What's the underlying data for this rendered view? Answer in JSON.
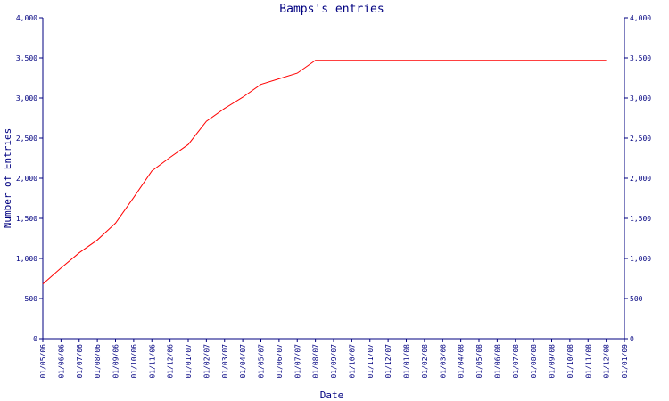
{
  "chart_data": {
    "type": "line",
    "title": "Bamps's entries",
    "xlabel": "Date",
    "ylabel": "Number of Entries",
    "ylim": [
      0,
      4000
    ],
    "y_ticks": [
      "0",
      "500",
      "1,000",
      "1,500",
      "2,000",
      "2,500",
      "3,000",
      "3,500",
      "4,000"
    ],
    "x_ticks": [
      "01/05/06",
      "01/06/06",
      "01/07/06",
      "01/08/06",
      "01/09/06",
      "01/10/06",
      "01/11/06",
      "01/12/06",
      "01/01/07",
      "01/02/07",
      "01/03/07",
      "01/04/07",
      "01/05/07",
      "01/06/07",
      "01/07/07",
      "01/08/07",
      "01/09/07",
      "01/10/07",
      "01/11/07",
      "01/12/07",
      "01/01/08",
      "01/02/08",
      "01/03/08",
      "01/04/08",
      "01/05/08",
      "01/06/08",
      "01/07/08",
      "01/08/08",
      "01/09/08",
      "01/10/08",
      "01/11/08",
      "01/12/08",
      "01/01/09"
    ],
    "grid": false,
    "colors": {
      "axis": "#000080",
      "line": "#ff0000"
    },
    "series": [
      {
        "x": [
          "01/05/06",
          "01/06/06",
          "01/07/06",
          "01/08/06",
          "01/09/06",
          "01/10/06",
          "01/11/06",
          "01/12/06",
          "01/01/07",
          "01/02/07",
          "01/03/07",
          "01/04/07",
          "01/05/07",
          "01/06/07",
          "01/07/07",
          "01/08/07",
          "01/09/07",
          "01/10/07",
          "01/11/07",
          "01/12/07",
          "01/01/08",
          "01/02/08",
          "01/03/08",
          "01/04/08",
          "01/05/08",
          "01/06/08",
          "01/07/08",
          "01/08/08",
          "01/09/08",
          "01/10/08",
          "01/11/08",
          "01/12/08"
        ],
        "y": [
          680,
          880,
          1070,
          1230,
          1440,
          1760,
          2090,
          2260,
          2420,
          2710,
          2870,
          3010,
          3170,
          3240,
          3310,
          3470,
          3470,
          3470,
          3470,
          3470,
          3470,
          3470,
          3470,
          3470,
          3470,
          3470,
          3470,
          3470,
          3470,
          3470,
          3470,
          3470
        ]
      }
    ]
  }
}
